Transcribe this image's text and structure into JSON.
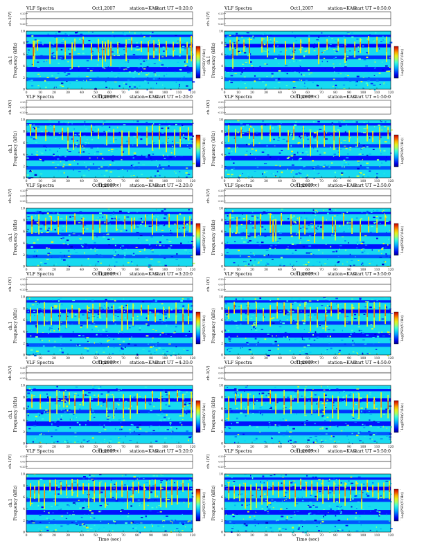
{
  "figure": {
    "colors": {
      "background": "#ffffff",
      "spectrogram_low": "#00008b",
      "spectrogram_mid": "#00ffff",
      "spectrogram_high": "#ffff00",
      "spectrogram_peak": "#ff0000"
    }
  },
  "chart_data": [
    {
      "type": "heatmap",
      "header": {
        "title": "VLF Spectra",
        "date": "Oct1,2007",
        "station": "station=KAG",
        "start": "start UT =0:20:0"
      },
      "top_panel": {
        "ylabel": "ch.1(V)",
        "yticks": [
          "0.20",
          "0.00",
          "-0.20"
        ]
      },
      "ylabel_channel": "ch.1",
      "ylabel": "Frequency (kHz)",
      "xlabel": "Time (sec)",
      "xticks": [
        "0",
        "10",
        "20",
        "30",
        "40",
        "50",
        "60",
        "70",
        "80",
        "90",
        "100",
        "110",
        "120"
      ],
      "xlim": [
        0,
        120
      ],
      "yticks": [
        "0",
        "2",
        "4",
        "6",
        "8",
        "10"
      ],
      "ylim": [
        0,
        10
      ],
      "colorbar_label": "Log(PSD(V²/Hz))",
      "colorbar_ticks": [
        "-",
        "-"
      ],
      "column_profile": "y",
      "signal_times": [
        5,
        6,
        8,
        17,
        22,
        28,
        33,
        35,
        41,
        47,
        52,
        55,
        57,
        59,
        61,
        66,
        72,
        76,
        83,
        88,
        92,
        96,
        101,
        106,
        111,
        116,
        119
      ]
    },
    {
      "type": "heatmap",
      "header": {
        "title": "VLF Spectra",
        "date": "Oct1,2007",
        "station": "station=KAG",
        "start": "start UT =0:50:0"
      },
      "top_panel": {
        "ylabel": "ch.1(V)",
        "yticks": [
          "0.20",
          "0.00",
          "-0.20"
        ]
      },
      "ylabel_channel": "ch.1",
      "ylabel": "Frequency (kHz)",
      "xlabel": "Time (sec)",
      "xticks": [
        "0",
        "10",
        "20",
        "30",
        "40",
        "50",
        "60",
        "70",
        "80",
        "90",
        "100",
        "110",
        "120"
      ],
      "xlim": [
        0,
        120
      ],
      "yticks": [
        "0",
        "2",
        "4",
        "6",
        "8",
        "10"
      ],
      "ylim": [
        0,
        10
      ],
      "colorbar_label": "Log(PSD(V²/Hz))",
      "colorbar_ticks": [
        "-",
        "-"
      ],
      "column_profile": "y",
      "signal_times": [
        4,
        6,
        9,
        14,
        18,
        27,
        31,
        36,
        44,
        50,
        55,
        61,
        68,
        74,
        82,
        87,
        94,
        98,
        104,
        110,
        117
      ]
    },
    {
      "type": "heatmap",
      "header": {
        "title": "VLF Spectra",
        "date": "Oct1,2007",
        "station": "station=KAG",
        "start": "start UT =1:20:0"
      },
      "top_panel": {
        "ylabel": "ch.1(V)",
        "yticks": [
          "0.20",
          "0.00",
          "-0.20"
        ]
      },
      "ylabel_channel": "ch.1",
      "ylabel": "Frequency (kHz)",
      "xlabel": "Time (sec)",
      "xticks": [
        "0",
        "10",
        "20",
        "30",
        "40",
        "50",
        "60",
        "70",
        "80",
        "90",
        "100",
        "110",
        "120"
      ],
      "xlim": [
        0,
        120
      ],
      "yticks": [
        "0",
        "2",
        "4",
        "6",
        "8",
        "10"
      ],
      "ylim": [
        0,
        10
      ],
      "colorbar_label": "Log(PSD(V²/Hz))",
      "colorbar_ticks": [
        "-",
        "-"
      ],
      "column_profile": "y",
      "signal_times": [
        3,
        7,
        14,
        20,
        26,
        30,
        34,
        39,
        47,
        52,
        58,
        63,
        69,
        74,
        80,
        87,
        91,
        96,
        101,
        107,
        111,
        117
      ]
    },
    {
      "type": "heatmap",
      "header": {
        "title": "VLF Spectra",
        "date": "Oct1,2007",
        "station": "station=KAG",
        "start": "start UT =1:50:0"
      },
      "top_panel": {
        "ylabel": "ch.1(V)",
        "yticks": [
          "0.20",
          "0.00",
          "-0.20"
        ]
      },
      "ylabel_channel": "",
      "ylabel": "Frequency (kHz)",
      "xlabel": "Time (sec)",
      "xticks": [
        "0",
        "10",
        "20",
        "30",
        "40",
        "50",
        "60",
        "70",
        "80",
        "90",
        "100",
        "110",
        "120"
      ],
      "xlim": [
        0,
        120
      ],
      "yticks": [
        "0",
        "2",
        "4",
        "6",
        "8",
        "10"
      ],
      "ylim": [
        0,
        10
      ],
      "colorbar_label": "Log(PSD(V²/Hz))",
      "colorbar_ticks": [
        "-",
        "-"
      ],
      "column_profile": "y",
      "signal_times": [
        3,
        8,
        12,
        18,
        21,
        27,
        33,
        40,
        46,
        50,
        57,
        62,
        67,
        72,
        79,
        83,
        90,
        96,
        103,
        107,
        112,
        118
      ]
    },
    {
      "type": "heatmap",
      "header": {
        "title": "VLF Spectra",
        "date": "Oct1,2007",
        "station": "station=KAG",
        "start": "start UT =2:20:0"
      },
      "top_panel": {
        "ylabel": "ch.1(V)",
        "yticks": [
          "0.20",
          "0.00",
          "-0.20"
        ]
      },
      "ylabel_channel": "ch.1",
      "ylabel": "Frequency (kHz)",
      "xlabel": "Time (sec)",
      "xticks": [
        "0",
        "10",
        "20",
        "30",
        "40",
        "50",
        "60",
        "70",
        "80",
        "90",
        "100",
        "110",
        "120"
      ],
      "xlim": [
        0,
        120
      ],
      "yticks": [
        "0",
        "2",
        "4",
        "6",
        "8",
        "10"
      ],
      "ylim": [
        0,
        10
      ],
      "colorbar_label": "Log(PSD(V²/Hz))",
      "colorbar_ticks": [
        "-",
        "-"
      ],
      "column_profile": "y",
      "signal_times": [
        4,
        9,
        14,
        18,
        23,
        29,
        35,
        41,
        48,
        53,
        58,
        65,
        71,
        76,
        78,
        86,
        91,
        94,
        103,
        109,
        114,
        118
      ]
    },
    {
      "type": "heatmap",
      "header": {
        "title": "VLF Spectra",
        "date": "Oct1,2007",
        "station": "station=KAG",
        "start": "start UT =2:50:0"
      },
      "top_panel": {
        "ylabel": "ch.1(V)",
        "yticks": [
          "0.20",
          "0.00",
          "-0.20"
        ]
      },
      "ylabel_channel": "",
      "ylabel": "Frequency (kHz)",
      "xlabel": "Time (sec)",
      "xticks": [
        "0",
        "10",
        "20",
        "30",
        "40",
        "50",
        "60",
        "70",
        "80",
        "90",
        "100",
        "110",
        "120"
      ],
      "xlim": [
        0,
        120
      ],
      "yticks": [
        "0",
        "2",
        "4",
        "6",
        "8",
        "10"
      ],
      "ylim": [
        0,
        10
      ],
      "colorbar_label": "Log(PSD(V²/Hz))",
      "colorbar_ticks": [
        "-",
        "-"
      ],
      "column_profile": "y",
      "signal_times": [
        4,
        9,
        16,
        22,
        26,
        33,
        35,
        37,
        41,
        48,
        54,
        58,
        65,
        71,
        78,
        80,
        86,
        92,
        98,
        104,
        110,
        116
      ]
    },
    {
      "type": "heatmap",
      "header": {
        "title": "VLF Spectra",
        "date": "Oct1,2007",
        "station": "station=KAG",
        "start": "start UT =3:20:0"
      },
      "top_panel": {
        "ylabel": "ch.1(V)",
        "yticks": [
          "0.20",
          "0.00",
          "-0.20"
        ]
      },
      "ylabel_channel": "ch.1",
      "ylabel": "Frequency (kHz)",
      "xlabel": "Time (sec)",
      "xticks": [
        "0",
        "10",
        "20",
        "30",
        "40",
        "50",
        "60",
        "70",
        "80",
        "90",
        "100",
        "110",
        "120"
      ],
      "xlim": [
        0,
        120
      ],
      "yticks": [
        "0",
        "2",
        "4",
        "6",
        "8",
        "10"
      ],
      "ylim": [
        0,
        10
      ],
      "colorbar_label": "Log(PSD(V²/Hz))",
      "colorbar_ticks": [
        "-",
        "-"
      ],
      "column_profile": "y",
      "signal_times": [
        3,
        8,
        13,
        18,
        24,
        29,
        33,
        38,
        44,
        48,
        53,
        58,
        63,
        69,
        73,
        77,
        83,
        88,
        93,
        99,
        103,
        108,
        113,
        117
      ]
    },
    {
      "type": "heatmap",
      "header": {
        "title": "VLF Spectra",
        "date": "Oct1,2007",
        "station": "station=KAG",
        "start": "start UT =3:50:0"
      },
      "top_panel": {
        "ylabel": "ch.1(V)",
        "yticks": [
          "0.20",
          "0.00",
          "-0.20"
        ]
      },
      "ylabel_channel": "",
      "ylabel": "Frequency (kHz)",
      "xlabel": "Time (sec)",
      "xticks": [
        "0",
        "10",
        "20",
        "30",
        "40",
        "50",
        "60",
        "70",
        "80",
        "90",
        "100",
        "110",
        "120"
      ],
      "xlim": [
        0,
        120
      ],
      "yticks": [
        "0",
        "2",
        "4",
        "6",
        "8",
        "10"
      ],
      "ylim": [
        0,
        10
      ],
      "colorbar_label": "Log(PSD(V²/Hz))",
      "colorbar_ticks": [
        "-",
        "-"
      ],
      "column_profile": "y",
      "signal_times": [
        3,
        7,
        12,
        17,
        23,
        28,
        33,
        38,
        43,
        48,
        53,
        58,
        62,
        67,
        73,
        77,
        82,
        87,
        92,
        97,
        103,
        108,
        112,
        116
      ]
    },
    {
      "type": "heatmap",
      "header": {
        "title": "VLF Spectra",
        "date": "Oct1,2007",
        "station": "station=KAG",
        "start": "start UT =4:20:0"
      },
      "top_panel": {
        "ylabel": "ch.1(V)",
        "yticks": [
          "0.20",
          "0.00",
          "-0.20"
        ]
      },
      "ylabel_channel": "ch.1",
      "ylabel": "Frequency (kHz)",
      "xlabel": "Time (sec)",
      "xticks": [
        "0",
        "10",
        "20",
        "30",
        "40",
        "50",
        "60",
        "70",
        "80",
        "90",
        "100",
        "110",
        "120"
      ],
      "xlim": [
        0,
        120
      ],
      "yticks": [
        "0",
        "2",
        "4",
        "6",
        "8",
        "10"
      ],
      "ylim": [
        0,
        10
      ],
      "colorbar_label": "Log(PSD(V²/Hz))",
      "colorbar_ticks": [
        "-",
        "-"
      ],
      "column_profile": "y",
      "signal_times": [
        4,
        10,
        17,
        22,
        27,
        31,
        35,
        41,
        46,
        52,
        58,
        63,
        70,
        75,
        80,
        86,
        91,
        97,
        103,
        109,
        113,
        119
      ]
    },
    {
      "type": "heatmap",
      "header": {
        "title": "VLF Spectra",
        "date": "Oct1,2007",
        "station": "station=KAG",
        "start": "start UT =4:50:0"
      },
      "top_panel": {
        "ylabel": "ch.1(V)",
        "yticks": [
          "0.20",
          "0.00",
          "-0.20"
        ]
      },
      "ylabel_channel": "",
      "ylabel": "Frequency (kHz)",
      "xlabel": "Time (sec)",
      "xticks": [
        "0",
        "10",
        "20",
        "30",
        "40",
        "50",
        "60",
        "70",
        "80",
        "90",
        "100",
        "110",
        "120"
      ],
      "xlim": [
        0,
        120
      ],
      "yticks": [
        "0",
        "2",
        "4",
        "6",
        "8",
        "10"
      ],
      "ylim": [
        0,
        10
      ],
      "colorbar_label": "Log(PSD(V²/Hz))",
      "colorbar_ticks": [
        "-",
        "-"
      ],
      "column_profile": "y",
      "signal_times": [
        3,
        8,
        12,
        17,
        21,
        27,
        33,
        37,
        43,
        48,
        53,
        58,
        63,
        68,
        72,
        78,
        82,
        88,
        93,
        97,
        103,
        108,
        113,
        118
      ]
    },
    {
      "type": "heatmap",
      "header": {
        "title": "VLF Spectra",
        "date": "Oct1,2007",
        "station": "station=KAG",
        "start": "start UT =5:20:0"
      },
      "top_panel": {
        "ylabel": "ch.1(V)",
        "yticks": [
          "0.20",
          "0.00",
          "-0.20"
        ]
      },
      "ylabel_channel": "ch.1",
      "ylabel": "Frequency (kHz)",
      "xlabel": "Time (sec)",
      "xticks": [
        "0",
        "10",
        "20",
        "30",
        "40",
        "50",
        "60",
        "70",
        "80",
        "90",
        "100",
        "110",
        "120"
      ],
      "xlim": [
        0,
        120
      ],
      "yticks": [
        "0",
        "2",
        "4",
        "6",
        "8",
        "10"
      ],
      "ylim": [
        0,
        10
      ],
      "colorbar_label": "Log(PSD(V²/Hz))",
      "colorbar_ticks": [
        "-",
        "-"
      ],
      "column_profile": "y",
      "signal_times": [
        3,
        6,
        9,
        13,
        17,
        21,
        25,
        29,
        33,
        37,
        41,
        45,
        49,
        53,
        57,
        61,
        65,
        69,
        73,
        77,
        81,
        85,
        89,
        93,
        97,
        101,
        105,
        109,
        113,
        117
      ]
    },
    {
      "type": "heatmap",
      "header": {
        "title": "VLF Spectra",
        "date": "Oct1,2007",
        "station": "station=KAG",
        "start": "start UT =5:50:0"
      },
      "top_panel": {
        "ylabel": "ch.1(V)",
        "yticks": [
          "0.20",
          "0.00",
          "-0.20"
        ]
      },
      "ylabel_channel": "",
      "ylabel": "Frequency (kHz)",
      "xlabel": "Time (sec)",
      "xticks": [
        "0",
        "10",
        "20",
        "30",
        "40",
        "50",
        "60",
        "70",
        "80",
        "90",
        "100",
        "110",
        "120"
      ],
      "xlim": [
        0,
        120
      ],
      "yticks": [
        "0",
        "2",
        "4",
        "6",
        "8",
        "10"
      ],
      "ylim": [
        0,
        10
      ],
      "colorbar_label": "Log(PSD(V²/Hz))",
      "colorbar_ticks": [
        "-",
        "-"
      ],
      "column_profile": "y",
      "signal_times": [
        3,
        7,
        11,
        15,
        19,
        23,
        27,
        31,
        35,
        39,
        43,
        47,
        51,
        55,
        59,
        63,
        67,
        71,
        75,
        79,
        83,
        87,
        91,
        95,
        99,
        103,
        107,
        111,
        115,
        119
      ]
    }
  ]
}
